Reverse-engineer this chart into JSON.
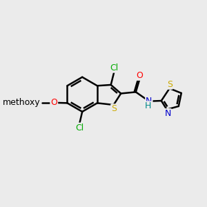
{
  "bg_color": "#ebebeb",
  "bond_color": "#000000",
  "bond_width": 1.8,
  "atom_colors": {
    "Cl": "#00aa00",
    "S": "#ccaa00",
    "S_thz": "#ccaa00",
    "O": "#ff0000",
    "N": "#0000cc",
    "H": "#008888",
    "C": "#000000"
  },
  "font_size": 9,
  "fig_size": [
    3.0,
    3.0
  ],
  "dpi": 100
}
